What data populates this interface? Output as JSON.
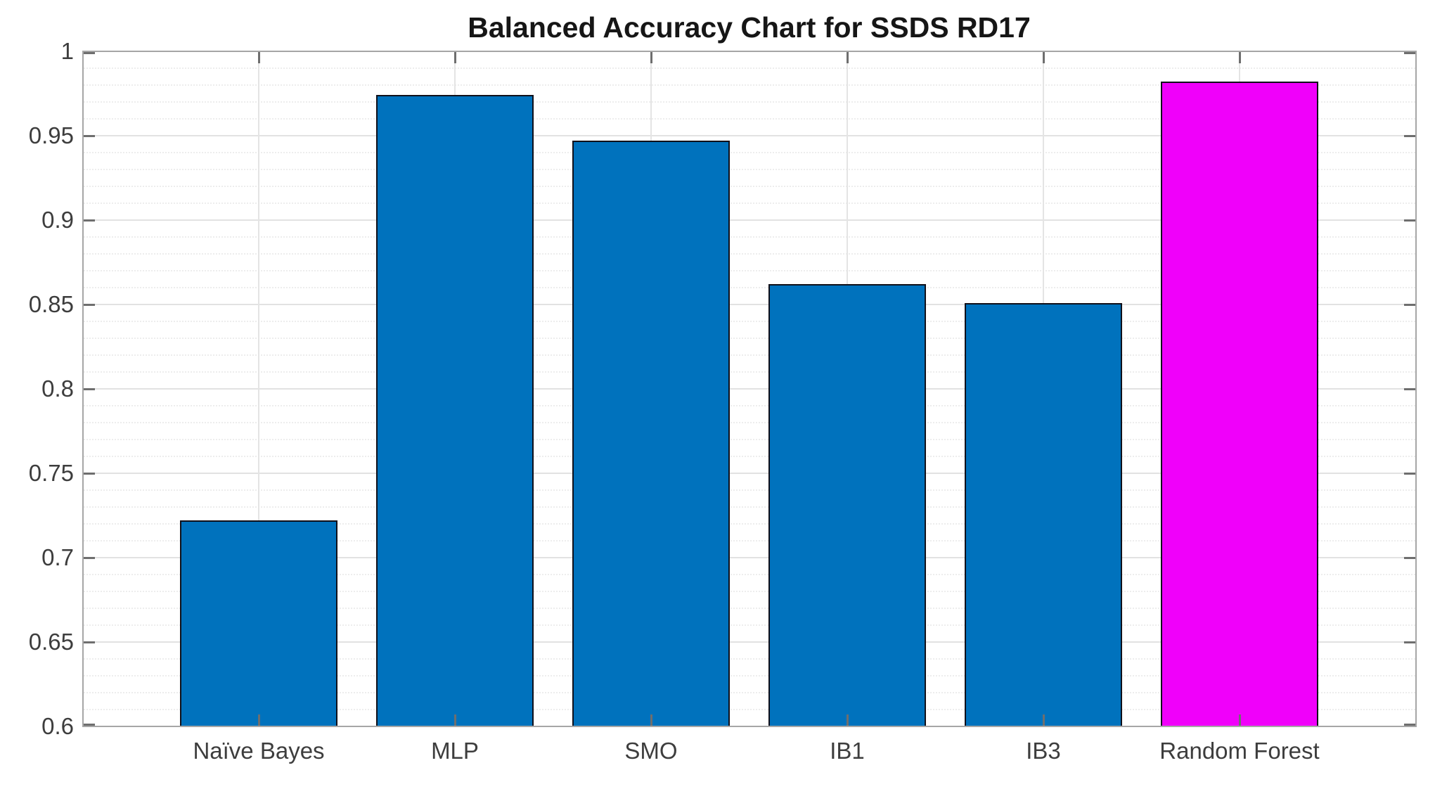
{
  "figure": {
    "background": "#ffffff"
  },
  "chart_data": {
    "type": "bar",
    "title": "Balanced Accuracy Chart for SSDS RD17",
    "categories": [
      "Naïve Bayes",
      "MLP",
      "SMO",
      "IB1",
      "IB3",
      "Random Forest"
    ],
    "values": [
      0.722,
      0.974,
      0.947,
      0.862,
      0.851,
      0.982
    ],
    "series": [
      {
        "name": "Balanced Accuracy",
        "values": [
          0.722,
          0.974,
          0.947,
          0.862,
          0.851,
          0.982
        ]
      }
    ],
    "bar_colors": [
      "#0072BD",
      "#0072BD",
      "#0072BD",
      "#0072BD",
      "#0072BD",
      "#F000FA"
    ],
    "default_bar_color": "#0072BD",
    "highlight_category": "Random Forest",
    "highlight_bar_color": "#F000FA",
    "bar_edge_color": "#10101a",
    "xlabel": "",
    "ylabel": "",
    "ylim": [
      0.6,
      1.0
    ],
    "ytick_values": [
      0.6,
      0.65,
      0.7,
      0.75,
      0.8,
      0.85,
      0.9,
      0.95,
      1.0
    ],
    "ytick_labels": [
      "0.6",
      "0.65",
      "0.7",
      "0.75",
      "0.8",
      "0.85",
      "0.9",
      "0.95",
      "1"
    ],
    "y_minor_step": 0.01,
    "grid": {
      "y_major": true,
      "y_minor": true,
      "x_major": true
    },
    "legend": "none",
    "axis_box": true,
    "colors": {
      "axis_box": "#a6a6a6",
      "tick_mark": "#6e6e6e",
      "grid_major": "#e2e2e2",
      "grid_minor": "#ededed",
      "tick_label": "#3d3d3d",
      "title": "#161616"
    }
  }
}
